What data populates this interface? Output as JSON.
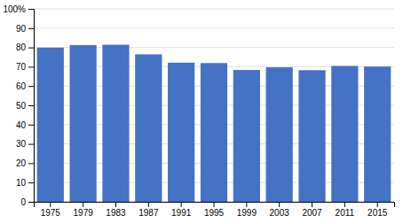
{
  "chart_data": {
    "type": "bar",
    "categories": [
      "1975",
      "1979",
      "1983",
      "1987",
      "1991",
      "1995",
      "1999",
      "2003",
      "2007",
      "2011",
      "2015"
    ],
    "values": [
      79.9,
      81.2,
      81.4,
      76.4,
      72.1,
      71.9,
      68.3,
      69.7,
      68.2,
      70.4,
      70.1
    ],
    "color": "#4472C4",
    "ylim": [
      0,
      100
    ],
    "yticks": [
      0,
      10,
      20,
      30,
      40,
      50,
      60,
      70,
      80,
      90,
      {
        "value": 100,
        "label": "100%"
      }
    ],
    "grid": true
  }
}
